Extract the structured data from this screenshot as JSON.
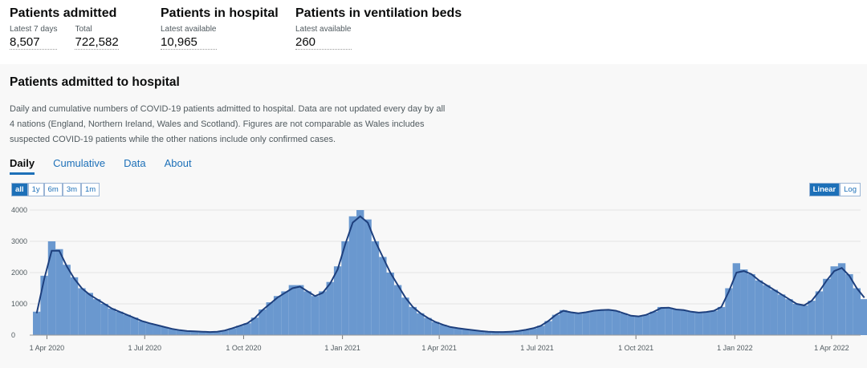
{
  "headlines": [
    {
      "title": "Patients admitted",
      "metrics": [
        {
          "label": "Latest 7 days",
          "value": "8,507"
        },
        {
          "label": "Total",
          "value": "722,582"
        }
      ]
    },
    {
      "title": "Patients in hospital",
      "metrics": [
        {
          "label": "Latest available",
          "value": "10,965"
        }
      ]
    },
    {
      "title": "Patients in ventilation beds",
      "metrics": [
        {
          "label": "Latest available",
          "value": "260"
        }
      ]
    }
  ],
  "card": {
    "title": "Patients admitted to hospital",
    "description": "Daily and cumulative numbers of COVID-19 patients admitted to hospital. Data are not updated every day by all 4 nations (England, Northern Ireland, Wales and Scotland). Figures are not comparable as Wales includes suspected COVID-19 patients while the other nations include only confirmed cases.",
    "tabs": [
      "Daily",
      "Cumulative",
      "Data",
      "About"
    ],
    "ranges": [
      "all",
      "1y",
      "6m",
      "3m",
      "1m"
    ],
    "scales": [
      "Linear",
      "Log"
    ]
  },
  "chart_data": {
    "type": "bar",
    "x": [
      "2020-03-19",
      "2020-03-26",
      "2020-04-02",
      "2020-04-09",
      "2020-04-16",
      "2020-04-23",
      "2020-04-30",
      "2020-05-07",
      "2020-05-14",
      "2020-05-21",
      "2020-05-28",
      "2020-06-04",
      "2020-06-11",
      "2020-06-18",
      "2020-06-25",
      "2020-07-02",
      "2020-07-09",
      "2020-07-16",
      "2020-07-23",
      "2020-07-30",
      "2020-08-06",
      "2020-08-13",
      "2020-08-20",
      "2020-08-27",
      "2020-09-03",
      "2020-09-10",
      "2020-09-17",
      "2020-09-24",
      "2020-10-01",
      "2020-10-08",
      "2020-10-15",
      "2020-10-22",
      "2020-10-29",
      "2020-11-05",
      "2020-11-12",
      "2020-11-19",
      "2020-11-26",
      "2020-12-03",
      "2020-12-10",
      "2020-12-17",
      "2020-12-24",
      "2020-12-31",
      "2021-01-07",
      "2021-01-14",
      "2021-01-21",
      "2021-01-28",
      "2021-02-04",
      "2021-02-11",
      "2021-02-18",
      "2021-02-25",
      "2021-03-04",
      "2021-03-11",
      "2021-03-18",
      "2021-03-25",
      "2021-04-01",
      "2021-04-08",
      "2021-04-15",
      "2021-04-22",
      "2021-04-29",
      "2021-05-06",
      "2021-05-13",
      "2021-05-20",
      "2021-05-27",
      "2021-06-03",
      "2021-06-10",
      "2021-06-17",
      "2021-06-24",
      "2021-07-01",
      "2021-07-08",
      "2021-07-15",
      "2021-07-22",
      "2021-07-29",
      "2021-08-05",
      "2021-08-12",
      "2021-08-19",
      "2021-08-26",
      "2021-09-02",
      "2021-09-09",
      "2021-09-16",
      "2021-09-23",
      "2021-09-30",
      "2021-10-07",
      "2021-10-14",
      "2021-10-21",
      "2021-10-28",
      "2021-11-04",
      "2021-11-11",
      "2021-11-18",
      "2021-11-25",
      "2021-12-02",
      "2021-12-09",
      "2021-12-16",
      "2021-12-23",
      "2021-12-30",
      "2022-01-06",
      "2022-01-13",
      "2022-01-20",
      "2022-01-27",
      "2022-02-03",
      "2022-02-10",
      "2022-02-17",
      "2022-02-24",
      "2022-03-03",
      "2022-03-10",
      "2022-03-17",
      "2022-03-24",
      "2022-03-31",
      "2022-04-07",
      "2022-04-14",
      "2022-04-21",
      "2022-04-28"
    ],
    "series": [
      {
        "type": "bar",
        "color": "#6a98cf",
        "values": [
          750,
          1900,
          3000,
          2750,
          2250,
          1850,
          1500,
          1350,
          1150,
          1000,
          850,
          750,
          650,
          560,
          450,
          380,
          320,
          260,
          200,
          160,
          130,
          120,
          110,
          100,
          110,
          150,
          220,
          300,
          380,
          560,
          820,
          1050,
          1250,
          1400,
          1600,
          1600,
          1400,
          1250,
          1400,
          1700,
          2200,
          3000,
          3800,
          4000,
          3700,
          3000,
          2500,
          2000,
          1600,
          1200,
          900,
          700,
          550,
          420,
          330,
          260,
          220,
          190,
          160,
          130,
          110,
          100,
          100,
          110,
          130,
          170,
          220,
          300,
          450,
          650,
          800,
          730,
          700,
          730,
          780,
          800,
          820,
          780,
          700,
          620,
          600,
          650,
          750,
          900,
          880,
          820,
          800,
          750,
          720,
          740,
          780,
          900,
          1500,
          2300,
          2100,
          1950,
          1750,
          1600,
          1450,
          1300,
          1150,
          1000,
          950,
          1100,
          1400,
          1800,
          2200,
          2300,
          1950,
          1500,
          1150
        ]
      },
      {
        "type": "line",
        "color": "#1d3f7d",
        "values": [
          700,
          1800,
          2700,
          2700,
          2200,
          1800,
          1500,
          1300,
          1150,
          1000,
          850,
          750,
          650,
          550,
          450,
          380,
          320,
          260,
          200,
          160,
          130,
          120,
          110,
          100,
          110,
          150,
          220,
          300,
          380,
          550,
          800,
          1000,
          1200,
          1350,
          1500,
          1550,
          1400,
          1250,
          1350,
          1650,
          2100,
          2900,
          3600,
          3800,
          3600,
          3000,
          2500,
          2000,
          1600,
          1200,
          900,
          700,
          550,
          420,
          330,
          260,
          220,
          190,
          160,
          130,
          110,
          100,
          100,
          110,
          130,
          170,
          220,
          300,
          450,
          650,
          780,
          730,
          700,
          730,
          780,
          800,
          810,
          780,
          700,
          620,
          600,
          650,
          750,
          870,
          880,
          820,
          800,
          750,
          720,
          740,
          780,
          900,
          1400,
          2000,
          2050,
          1950,
          1750,
          1600,
          1450,
          1300,
          1150,
          1000,
          950,
          1100,
          1400,
          1750,
          2050,
          2150,
          1900,
          1500,
          1200
        ]
      }
    ],
    "xlim": [
      "2020-03-16",
      "2022-04-28"
    ],
    "xticks": [
      {
        "value": "2020-04-01",
        "label": "1 Apr 2020"
      },
      {
        "value": "2020-07-01",
        "label": "1 Jul 2020"
      },
      {
        "value": "2020-10-01",
        "label": "1 Oct 2020"
      },
      {
        "value": "2021-01-01",
        "label": "1 Jan 2021"
      },
      {
        "value": "2021-04-01",
        "label": "1 Apr 2021"
      },
      {
        "value": "2021-07-01",
        "label": "1 Jul 2021"
      },
      {
        "value": "2021-10-01",
        "label": "1 Oct 2021"
      },
      {
        "value": "2022-01-01",
        "label": "1 Jan 2022"
      },
      {
        "value": "2022-04-01",
        "label": "1 Apr 2022"
      }
    ],
    "ylim": [
      0,
      4000
    ],
    "yticks": [
      0,
      1000,
      2000,
      3000,
      4000
    ],
    "grid": true
  }
}
